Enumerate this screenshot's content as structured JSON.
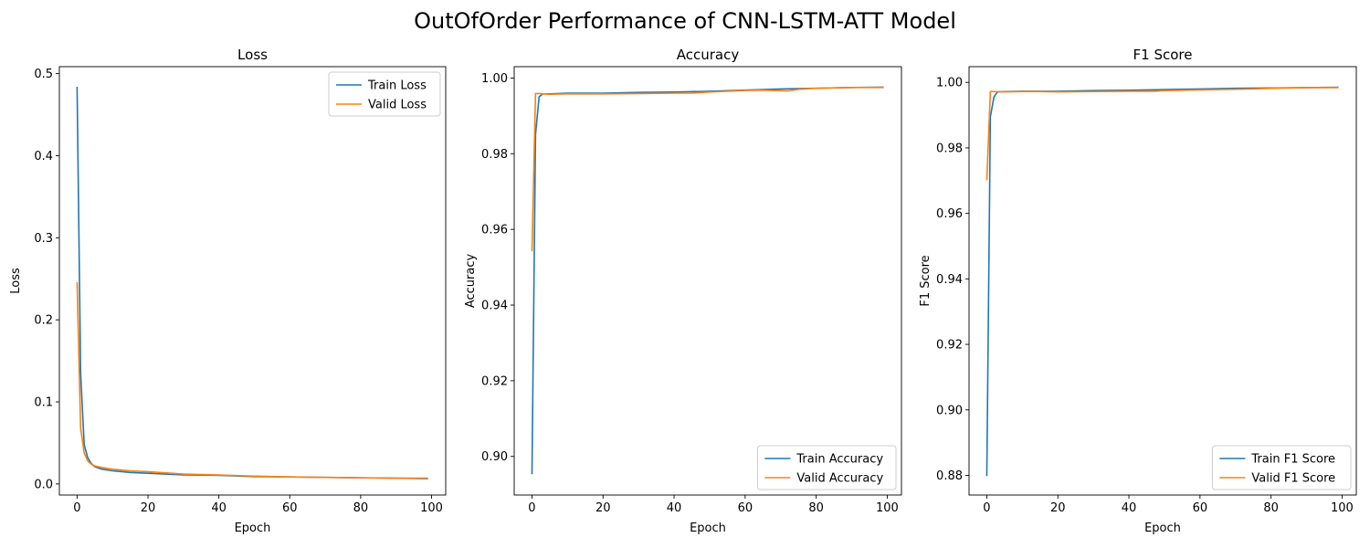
{
  "suptitle": "OutOfOrder Performance of CNN-LSTM-ATT Model",
  "colors": {
    "train": "#1f77b4",
    "valid": "#ff7f0e"
  },
  "chart_data": [
    {
      "type": "line",
      "title": "Loss",
      "xlabel": "Epoch",
      "ylabel": "Loss",
      "xlim": [
        -5,
        104
      ],
      "ylim": [
        -0.0135,
        0.5085
      ],
      "xticks": [
        0,
        20,
        40,
        60,
        80,
        100
      ],
      "yticks": [
        0.0,
        0.1,
        0.2,
        0.3,
        0.4,
        0.5
      ],
      "ytick_labels": [
        "0.0",
        "0.1",
        "0.2",
        "0.3",
        "0.4",
        "0.5"
      ],
      "legend_loc": "top-right",
      "series": [
        {
          "name": "Train Loss",
          "x": [
            0,
            1,
            2,
            3,
            4,
            5,
            7,
            10,
            15,
            20,
            30,
            40,
            50,
            60,
            70,
            80,
            90,
            99
          ],
          "values": [
            0.484,
            0.135,
            0.048,
            0.032,
            0.025,
            0.021,
            0.018,
            0.016,
            0.014,
            0.013,
            0.011,
            0.0105,
            0.009,
            0.0085,
            0.008,
            0.0075,
            0.007,
            0.0065
          ]
        },
        {
          "name": "Valid Loss",
          "x": [
            0,
            1,
            2,
            3,
            4,
            5,
            7,
            10,
            15,
            20,
            30,
            40,
            50,
            60,
            70,
            80,
            90,
            99
          ],
          "values": [
            0.246,
            0.068,
            0.038,
            0.028,
            0.024,
            0.022,
            0.02,
            0.018,
            0.016,
            0.015,
            0.012,
            0.011,
            0.0095,
            0.0085,
            0.008,
            0.0075,
            0.007,
            0.007
          ]
        }
      ]
    },
    {
      "type": "line",
      "title": "Accuracy",
      "xlabel": "Epoch",
      "ylabel": "Accuracy",
      "xlim": [
        -5,
        104
      ],
      "ylim": [
        0.8898,
        1.003
      ],
      "xticks": [
        0,
        20,
        40,
        60,
        80,
        100
      ],
      "yticks": [
        0.9,
        0.92,
        0.94,
        0.96,
        0.98,
        1.0
      ],
      "ytick_labels": [
        "0.90",
        "0.92",
        "0.94",
        "0.96",
        "0.98",
        "1.00"
      ],
      "legend_loc": "bottom-right",
      "series": [
        {
          "name": "Train Accuracy",
          "x": [
            0,
            1,
            2,
            3,
            5,
            10,
            20,
            30,
            40,
            50,
            60,
            70,
            80,
            90,
            99
          ],
          "values": [
            0.8953,
            0.985,
            0.995,
            0.9958,
            0.9958,
            0.996,
            0.996,
            0.9962,
            0.9963,
            0.9965,
            0.9968,
            0.9971,
            0.9973,
            0.9975,
            0.9976
          ]
        },
        {
          "name": "Valid Accuracy",
          "x": [
            0,
            1,
            2,
            5,
            10,
            15,
            20,
            30,
            40,
            45,
            48,
            50,
            60,
            65,
            68,
            72,
            75,
            80,
            90,
            99
          ],
          "values": [
            0.9542,
            0.9959,
            0.9959,
            0.9957,
            0.9958,
            0.9958,
            0.9958,
            0.9959,
            0.996,
            0.996,
            0.9962,
            0.9963,
            0.9967,
            0.9968,
            0.9967,
            0.9966,
            0.997,
            0.9973,
            0.9975,
            0.9975
          ]
        }
      ]
    },
    {
      "type": "line",
      "title": "F1 Score",
      "xlabel": "Epoch",
      "ylabel": "F1 Score",
      "xlim": [
        -5,
        104
      ],
      "ylim": [
        0.874,
        1.0048
      ],
      "xticks": [
        0,
        20,
        40,
        60,
        80,
        100
      ],
      "yticks": [
        0.88,
        0.9,
        0.92,
        0.94,
        0.96,
        0.98,
        1.0
      ],
      "ytick_labels": [
        "0.88",
        "0.90",
        "0.92",
        "0.94",
        "0.96",
        "0.98",
        "1.00"
      ],
      "legend_loc": "bottom-right",
      "series": [
        {
          "name": "Train F1 Score",
          "x": [
            0,
            1,
            2,
            3,
            5,
            10,
            20,
            30,
            40,
            50,
            60,
            70,
            80,
            90,
            99
          ],
          "values": [
            0.8798,
            0.9895,
            0.9955,
            0.9971,
            0.9972,
            0.9973,
            0.9973,
            0.9975,
            0.9976,
            0.9978,
            0.998,
            0.9982,
            0.9983,
            0.9984,
            0.9985
          ]
        },
        {
          "name": "Valid F1 Score",
          "x": [
            0,
            1,
            2,
            5,
            10,
            15,
            20,
            30,
            40,
            47,
            50,
            60,
            70,
            75,
            80,
            90,
            99
          ],
          "values": [
            0.9701,
            0.9972,
            0.9972,
            0.9971,
            0.9972,
            0.9972,
            0.9971,
            0.9972,
            0.9973,
            0.9973,
            0.9975,
            0.9977,
            0.9979,
            0.998,
            0.9982,
            0.9984,
            0.9984
          ]
        }
      ]
    }
  ]
}
